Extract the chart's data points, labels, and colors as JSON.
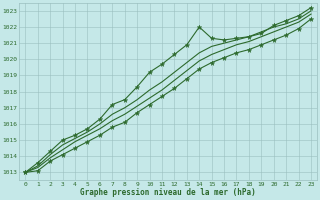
{
  "title": "Graphe pression niveau de la mer (hPa)",
  "xlim": [
    -0.5,
    23.5
  ],
  "ylim": [
    1012.5,
    1023.5
  ],
  "yticks": [
    1013,
    1014,
    1015,
    1016,
    1017,
    1018,
    1019,
    1020,
    1021,
    1022,
    1023
  ],
  "xticks": [
    0,
    1,
    2,
    3,
    4,
    5,
    6,
    7,
    8,
    9,
    10,
    11,
    12,
    13,
    14,
    15,
    16,
    17,
    18,
    19,
    20,
    21,
    22,
    23
  ],
  "bg_color": "#c5e8e8",
  "grid_color": "#9bbfbf",
  "line_color": "#2d6a2d",
  "series_main": [
    1013.0,
    1013.6,
    1014.3,
    1015.0,
    1015.3,
    1015.7,
    1016.3,
    1017.2,
    1017.5,
    1018.3,
    1019.2,
    1019.7,
    1020.3,
    1020.9,
    1022.0,
    1021.3,
    1021.2,
    1021.3,
    1021.4,
    1021.6,
    1022.1,
    1022.4,
    1022.7,
    1023.2
  ],
  "series_mid1": [
    1013.0,
    1013.4,
    1014.1,
    1014.7,
    1015.1,
    1015.5,
    1016.0,
    1016.6,
    1017.0,
    1017.5,
    1018.1,
    1018.6,
    1019.2,
    1019.8,
    1020.4,
    1020.8,
    1021.0,
    1021.2,
    1021.4,
    1021.7,
    1022.0,
    1022.2,
    1022.5,
    1023.0
  ],
  "series_mid2": [
    1013.0,
    1013.3,
    1013.9,
    1014.4,
    1014.9,
    1015.3,
    1015.7,
    1016.2,
    1016.6,
    1017.1,
    1017.6,
    1018.1,
    1018.7,
    1019.3,
    1019.9,
    1020.3,
    1020.6,
    1020.9,
    1021.1,
    1021.4,
    1021.7,
    1022.0,
    1022.3,
    1022.8
  ],
  "series_low": [
    1013.0,
    1013.1,
    1013.7,
    1014.1,
    1014.5,
    1014.9,
    1015.3,
    1015.8,
    1016.1,
    1016.7,
    1017.2,
    1017.7,
    1018.2,
    1018.8,
    1019.4,
    1019.8,
    1020.1,
    1020.4,
    1020.6,
    1020.9,
    1021.2,
    1021.5,
    1021.9,
    1022.5
  ]
}
